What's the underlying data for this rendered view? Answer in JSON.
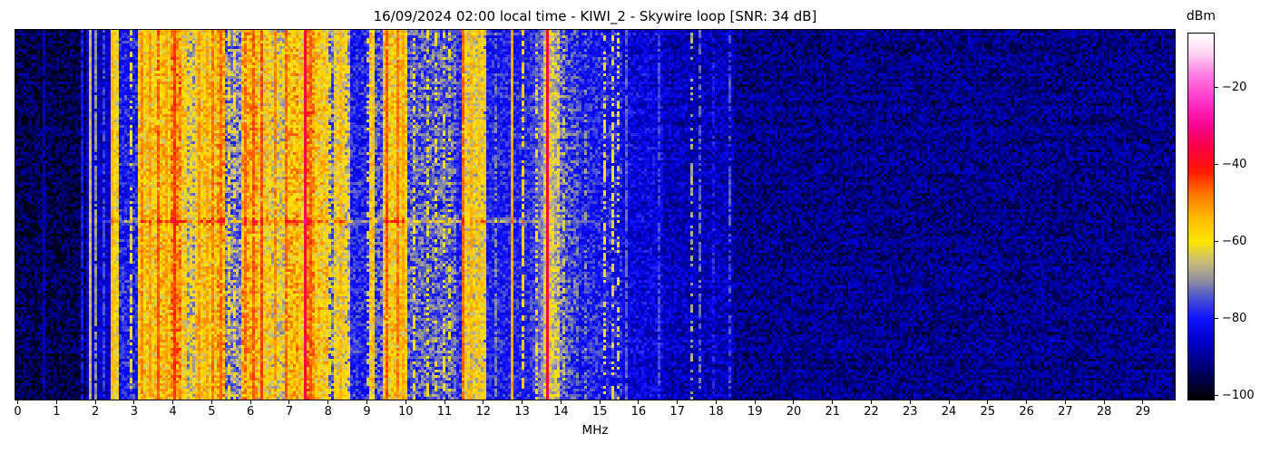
{
  "chart_data": {
    "type": "heatmap",
    "title": "16/09/2024 02:00 local time - KIWI_2 - Skywire loop [SNR: 34 dB]",
    "xlabel": "MHz",
    "x_range": [
      -0.06,
      29.82
    ],
    "x_ticks": [
      0,
      1,
      2,
      3,
      4,
      5,
      6,
      7,
      8,
      9,
      10,
      11,
      12,
      13,
      14,
      15,
      16,
      17,
      18,
      19,
      20,
      21,
      22,
      23,
      24,
      25,
      26,
      27,
      28,
      29
    ],
    "y_axis": "time (no tick labels shown)",
    "grid": {
      "cols": 426,
      "rows": 136
    },
    "seed": 7,
    "colorbar": {
      "label": "dBm",
      "ticks": [
        -20,
        -40,
        -60,
        -80,
        -100
      ],
      "value_top": -6,
      "value_bottom": -101
    },
    "colormap_stops": [
      {
        "v": -6,
        "c": "#ffffff"
      },
      {
        "v": -11,
        "c": "#ffd4f4"
      },
      {
        "v": -17,
        "c": "#ff79e1"
      },
      {
        "v": -24,
        "c": "#ff2ec8"
      },
      {
        "v": -30,
        "c": "#f6058f"
      },
      {
        "v": -36,
        "c": "#ff0040"
      },
      {
        "v": -42,
        "c": "#ff1c00"
      },
      {
        "v": -48,
        "c": "#ff7c00"
      },
      {
        "v": -54,
        "c": "#ffbc00"
      },
      {
        "v": -60,
        "c": "#ffe600"
      },
      {
        "v": -65,
        "c": "#ccc077"
      },
      {
        "v": -70,
        "c": "#92919e"
      },
      {
        "v": -75,
        "c": "#4950d4"
      },
      {
        "v": -80,
        "c": "#1112ff"
      },
      {
        "v": -86,
        "c": "#0000cc"
      },
      {
        "v": -92,
        "c": "#000080"
      },
      {
        "v": -97,
        "c": "#000038"
      },
      {
        "v": -101,
        "c": "#000000"
      }
    ],
    "bands": [
      [
        0.0,
        1.78,
        -95,
        6
      ],
      [
        1.78,
        2.36,
        -86,
        5
      ],
      [
        2.36,
        2.6,
        -59,
        7
      ],
      [
        2.6,
        3.12,
        -79,
        6
      ],
      [
        3.12,
        3.55,
        -57,
        8
      ],
      [
        3.55,
        3.95,
        -56,
        8
      ],
      [
        3.95,
        4.2,
        -50,
        7
      ],
      [
        4.2,
        4.36,
        -58,
        8
      ],
      [
        4.36,
        4.56,
        -65,
        9
      ],
      [
        4.56,
        5.16,
        -57,
        8
      ],
      [
        5.16,
        5.32,
        -53,
        8
      ],
      [
        5.32,
        5.76,
        -71,
        8
      ],
      [
        5.76,
        6.18,
        -54,
        8
      ],
      [
        6.18,
        6.52,
        -58,
        9
      ],
      [
        6.52,
        6.88,
        -62,
        9
      ],
      [
        6.88,
        7.22,
        -55,
        8
      ],
      [
        7.22,
        7.35,
        -61,
        8
      ],
      [
        7.35,
        7.42,
        -46,
        5
      ],
      [
        7.42,
        7.64,
        -52,
        7
      ],
      [
        7.64,
        7.98,
        -57,
        8
      ],
      [
        7.98,
        8.14,
        -71,
        8
      ],
      [
        8.14,
        8.42,
        -60,
        8
      ],
      [
        8.42,
        8.56,
        -66,
        9
      ],
      [
        8.56,
        9.08,
        -79,
        6
      ],
      [
        9.08,
        9.22,
        -58,
        8
      ],
      [
        9.22,
        9.42,
        -75,
        7
      ],
      [
        9.42,
        10.04,
        -57,
        8
      ],
      [
        10.04,
        10.14,
        -76,
        6
      ],
      [
        10.14,
        11.28,
        -74,
        7
      ],
      [
        11.28,
        11.44,
        -78,
        6
      ],
      [
        11.44,
        11.6,
        -60,
        8
      ],
      [
        11.6,
        11.98,
        -61,
        9
      ],
      [
        11.98,
        12.1,
        -70,
        8
      ],
      [
        12.1,
        13.55,
        -79,
        5
      ],
      [
        13.55,
        13.95,
        -73,
        6
      ],
      [
        13.95,
        14.45,
        -76,
        7
      ],
      [
        14.45,
        15.08,
        -79,
        6
      ],
      [
        15.08,
        15.55,
        -80,
        7
      ],
      [
        15.55,
        16.6,
        -84,
        6
      ],
      [
        16.6,
        18.45,
        -87,
        6
      ],
      [
        18.45,
        29.9,
        -91,
        6
      ]
    ],
    "carriers": [
      [
        0.7,
        -88,
        0.05,
        0.9
      ],
      [
        1.67,
        -80,
        0.05,
        0.9
      ],
      [
        1.85,
        -66,
        0.05,
        1
      ],
      [
        2.03,
        -70,
        0.05,
        0.9
      ],
      [
        2.22,
        -76,
        0.05,
        0.7
      ],
      [
        2.46,
        -54,
        0.07,
        0.9
      ],
      [
        2.91,
        -62,
        0.05,
        0.5
      ],
      [
        3.2,
        -49,
        0.07,
        0.9
      ],
      [
        3.38,
        -51,
        0.07,
        0.8
      ],
      [
        3.6,
        -46,
        0.07,
        0.9
      ],
      [
        3.8,
        -52,
        0.07,
        0.7
      ],
      [
        4.05,
        -44,
        0.1,
        0.95
      ],
      [
        4.47,
        -57,
        0.06,
        0.5
      ],
      [
        4.65,
        -50,
        0.07,
        0.8
      ],
      [
        4.85,
        -52,
        0.07,
        0.7
      ],
      [
        5.05,
        -48,
        0.07,
        0.85
      ],
      [
        5.22,
        -47,
        0.07,
        0.9
      ],
      [
        5.45,
        -60,
        0.06,
        0.4
      ],
      [
        5.62,
        -60,
        0.06,
        0.4
      ],
      [
        5.9,
        -47,
        0.07,
        0.9
      ],
      [
        6.05,
        -46,
        0.07,
        0.9
      ],
      [
        6.3,
        -45,
        0.07,
        0.9
      ],
      [
        6.62,
        -49,
        0.07,
        0.8
      ],
      [
        6.95,
        -47,
        0.07,
        0.9
      ],
      [
        7.38,
        -36,
        0.07,
        1
      ],
      [
        7.52,
        -47,
        0.07,
        0.85
      ],
      [
        8.06,
        -58,
        0.06,
        0.5
      ],
      [
        8.33,
        -53,
        0.06,
        0.7
      ],
      [
        8.49,
        -58,
        0.06,
        0.5
      ],
      [
        9.05,
        -63,
        0.06,
        0.3
      ],
      [
        9.5,
        -46,
        0.07,
        0.95
      ],
      [
        9.76,
        -48,
        0.07,
        0.9
      ],
      [
        9.95,
        -52,
        0.06,
        0.7
      ],
      [
        10.19,
        -59,
        0.06,
        0.4
      ],
      [
        10.55,
        -59,
        0.06,
        0.4
      ],
      [
        10.78,
        -60,
        0.06,
        0.35
      ],
      [
        11.01,
        -60,
        0.06,
        0.35
      ],
      [
        11.16,
        -61,
        0.06,
        0.3
      ],
      [
        11.5,
        -47,
        0.07,
        0.95
      ],
      [
        11.71,
        -53,
        0.06,
        0.7
      ],
      [
        11.9,
        -55,
        0.06,
        0.6
      ],
      [
        12.02,
        -56,
        0.06,
        0.85
      ],
      [
        12.33,
        -71,
        0.05,
        0.5
      ],
      [
        12.71,
        -52,
        0.06,
        1
      ],
      [
        12.99,
        -57,
        0.05,
        0.6
      ],
      [
        13.35,
        -61,
        0.05,
        0.4
      ],
      [
        13.67,
        -37,
        0.09,
        1
      ],
      [
        13.92,
        -60,
        0.05,
        0.35
      ],
      [
        14.1,
        -64,
        0.05,
        0.3
      ],
      [
        14.6,
        -70,
        0.05,
        0.3
      ],
      [
        15.15,
        -60,
        0.06,
        0.5
      ],
      [
        15.31,
        -61,
        0.06,
        0.45
      ],
      [
        15.46,
        -63,
        0.06,
        0.35
      ],
      [
        15.72,
        -74,
        0.05,
        0.8
      ],
      [
        16.56,
        -76,
        0.05,
        0.7
      ],
      [
        17.38,
        -68,
        0.06,
        0.45
      ],
      [
        17.6,
        -73,
        0.05,
        0.6
      ],
      [
        17.95,
        -79,
        0.05,
        0.5
      ],
      [
        18.36,
        -75,
        0.05,
        0.6
      ]
    ],
    "glows": [
      [
        13.67,
        10,
        0.22
      ],
      [
        7.38,
        4,
        0.15
      ]
    ],
    "time_band": {
      "row_frac": 0.515,
      "boost": 9,
      "f0": 2.3,
      "f1": 13.4,
      "soft_boost": 4,
      "soft_f0": 1.8,
      "soft_f1": 15.3
    }
  }
}
